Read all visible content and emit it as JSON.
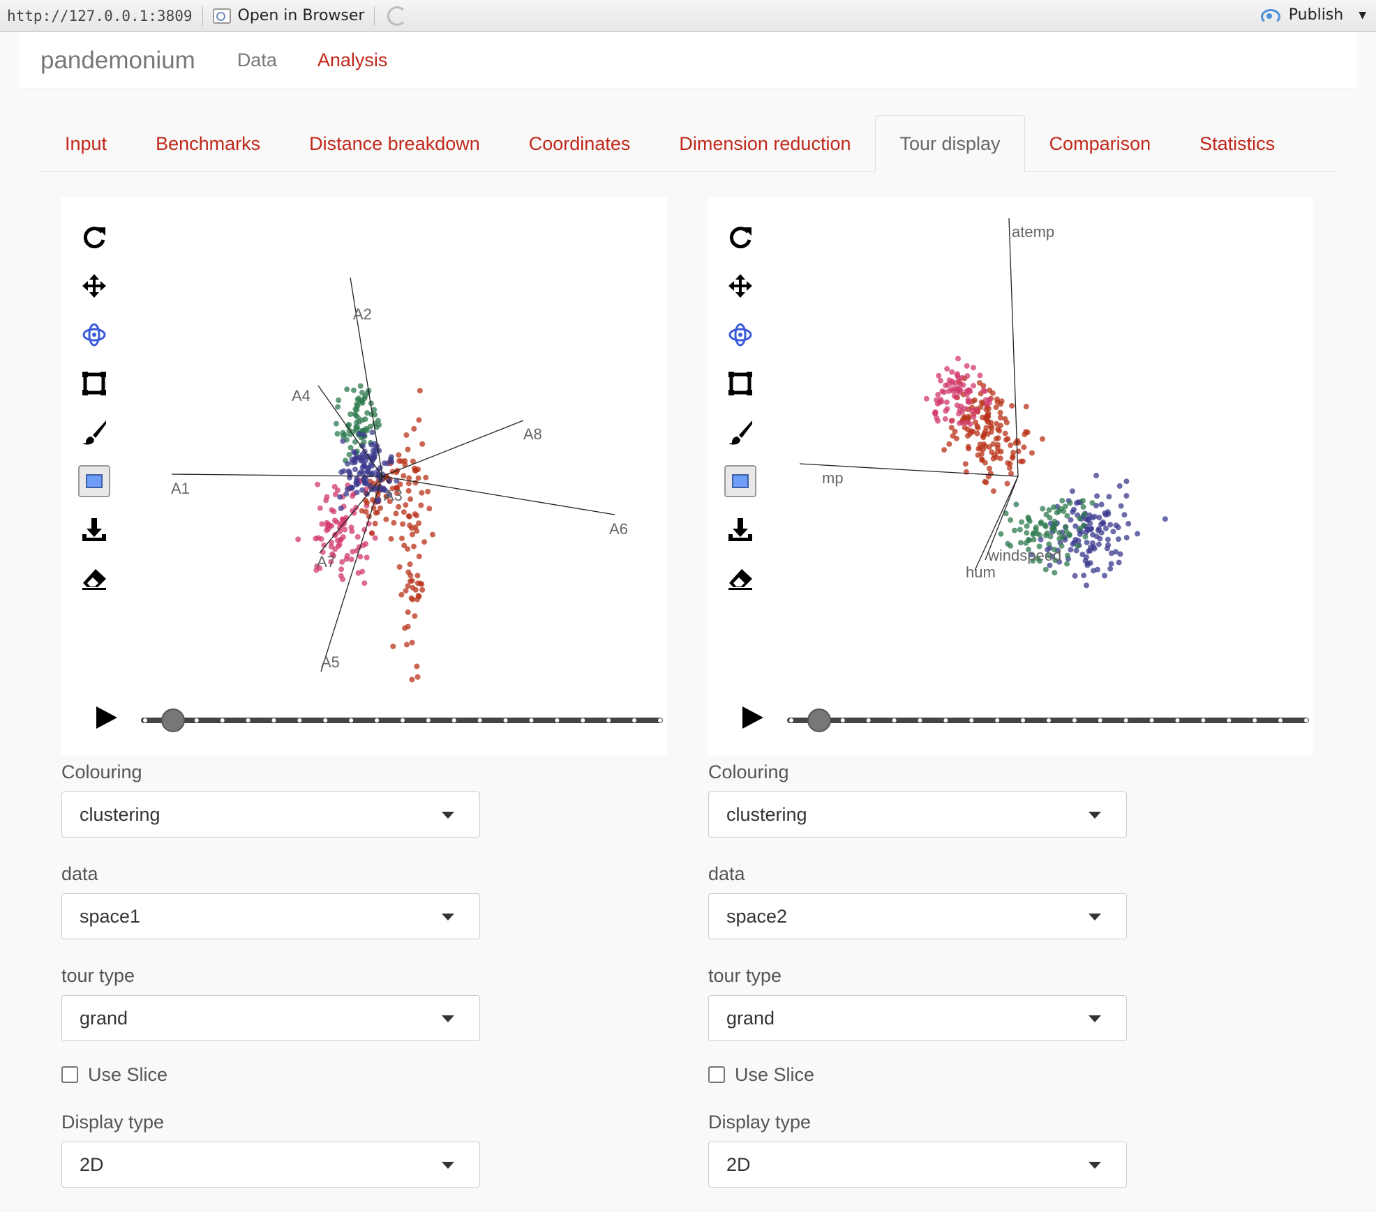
{
  "browser": {
    "url": "http://127.0.0.1:3809",
    "open_in_browser": "Open in Browser",
    "publish": "Publish"
  },
  "navbar": {
    "brand": "pandemonium",
    "links": [
      {
        "label": "Data",
        "active": false
      },
      {
        "label": "Analysis",
        "active": true
      }
    ]
  },
  "tabs": [
    {
      "label": "Input",
      "active": false
    },
    {
      "label": "Benchmarks",
      "active": false
    },
    {
      "label": "Distance breakdown",
      "active": false
    },
    {
      "label": "Coordinates",
      "active": false
    },
    {
      "label": "Dimension reduction",
      "active": false
    },
    {
      "label": "Tour display",
      "active": true
    },
    {
      "label": "Comparison",
      "active": false
    },
    {
      "label": "Statistics",
      "active": false
    }
  ],
  "toolbar_icons": [
    "reset-icon",
    "pan-icon",
    "rotate-icon",
    "select-box-icon",
    "brush-icon",
    "color-box-icon",
    "download-icon",
    "eraser-icon"
  ],
  "colors": {
    "accent": "#c0281b",
    "cluster_red": "#b83218",
    "cluster_pink": "#d23a6c",
    "cluster_blue": "#3b3a8e",
    "cluster_green": "#2e7a4e",
    "active_tool": "#3a5bd9"
  },
  "left": {
    "axis_labels": [
      "A1",
      "A2",
      "A3",
      "A4",
      "A5",
      "A6",
      "A7",
      "A8"
    ],
    "controls": {
      "colouring_label": "Colouring",
      "colouring_value": "clustering",
      "data_label": "data",
      "data_value": "space1",
      "tour_type_label": "tour type",
      "tour_type_value": "grand",
      "slice_label": "Use Slice",
      "display_type_label": "Display type",
      "display_type_value": "2D"
    }
  },
  "right": {
    "axis_labels": [
      "atemp",
      "mp",
      "windspeed",
      "hum"
    ],
    "controls": {
      "colouring_label": "Colouring",
      "colouring_value": "clustering",
      "data_label": "data",
      "data_value": "space2",
      "tour_type_label": "tour type",
      "tour_type_value": "grand",
      "slice_label": "Use Slice",
      "display_type_label": "Display type",
      "display_type_value": "2D"
    }
  }
}
